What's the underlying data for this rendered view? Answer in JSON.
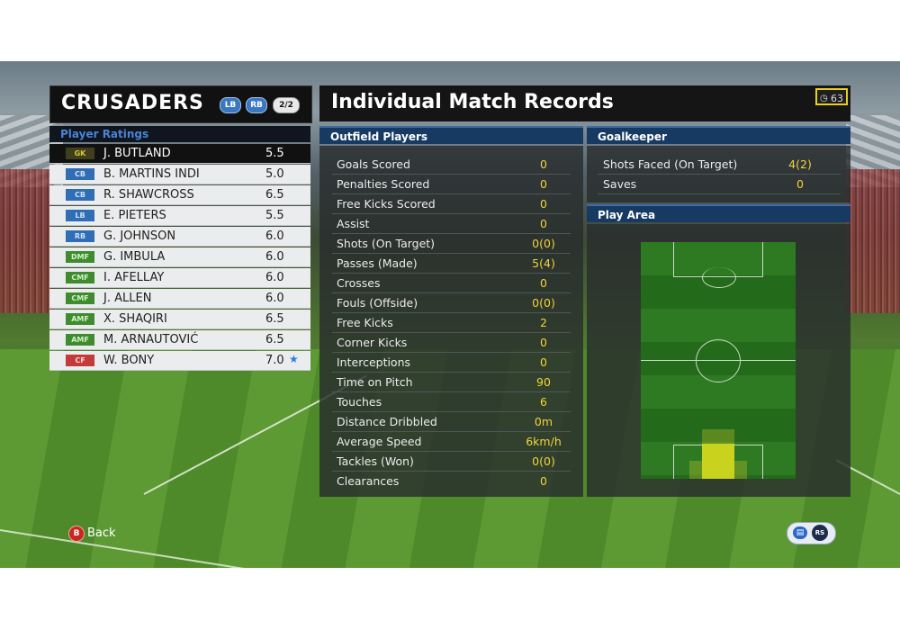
{
  "team": {
    "name": "CRUSADERS",
    "chips": {
      "lb": "LB",
      "rb": "RB",
      "page": "2/2"
    },
    "ratings_label": "Player Ratings",
    "players": [
      {
        "pos": "GK",
        "name": "J. BUTLAND",
        "rating": "5.5",
        "selected": true
      },
      {
        "pos": "CB",
        "name": "B. MARTINS INDI",
        "rating": "5.0"
      },
      {
        "pos": "CB",
        "name": "R. SHAWCROSS",
        "rating": "6.5"
      },
      {
        "pos": "LB",
        "name": "E. PIETERS",
        "rating": "5.5"
      },
      {
        "pos": "RB",
        "name": "G. JOHNSON",
        "rating": "6.0"
      },
      {
        "pos": "DMF",
        "name": "G. IMBULA",
        "rating": "6.0"
      },
      {
        "pos": "CMF",
        "name": "I. AFELLAY",
        "rating": "6.0"
      },
      {
        "pos": "CMF",
        "name": "J. ALLEN",
        "rating": "6.0"
      },
      {
        "pos": "AMF",
        "name": "X. SHAQIRI",
        "rating": "6.5"
      },
      {
        "pos": "AMF",
        "name": "M. ARNAUTOVIĆ",
        "rating": "6.5"
      },
      {
        "pos": "CF",
        "name": "W. BONY",
        "rating": "7.0",
        "star": true
      }
    ]
  },
  "records": {
    "title": "Individual Match Records",
    "timer": "63",
    "outfield_label": "Outfield Players",
    "outfield": [
      {
        "label": "Goals Scored",
        "value": "0"
      },
      {
        "label": "Penalties Scored",
        "value": "0"
      },
      {
        "label": "Free Kicks Scored",
        "value": "0"
      },
      {
        "label": "Assist",
        "value": "0"
      },
      {
        "label": "Shots (On Target)",
        "value": "0(0)"
      },
      {
        "label": "Passes (Made)",
        "value": "5(4)"
      },
      {
        "label": "Crosses",
        "value": "0"
      },
      {
        "label": "Fouls (Offside)",
        "value": "0(0)"
      },
      {
        "label": "Free Kicks",
        "value": "2"
      },
      {
        "label": "Corner Kicks",
        "value": "0"
      },
      {
        "label": "Interceptions",
        "value": "0"
      },
      {
        "label": "Time on Pitch",
        "value": "90"
      },
      {
        "label": "Touches",
        "value": "6"
      },
      {
        "label": "Distance Dribbled",
        "value": "0m"
      },
      {
        "label": "Average Speed",
        "value": "6km/h"
      },
      {
        "label": "Tackles (Won)",
        "value": "0(0)"
      },
      {
        "label": "Clearances",
        "value": "0"
      }
    ],
    "goalkeeper_label": "Goalkeeper",
    "goalkeeper": [
      {
        "label": "Shots Faced (On Target)",
        "value": "4(2)"
      },
      {
        "label": "Saves",
        "value": "0"
      }
    ],
    "play_area_label": "Play Area"
  },
  "controls": {
    "back_button_glyph": "B",
    "back_label": "Back",
    "right_control_glyph": "RS"
  },
  "colors": {
    "accent_yellow": "#f1d33a",
    "header_blue": "#173a63",
    "section_label_blue": "#4a84d6",
    "back_red": "#c8281d"
  }
}
